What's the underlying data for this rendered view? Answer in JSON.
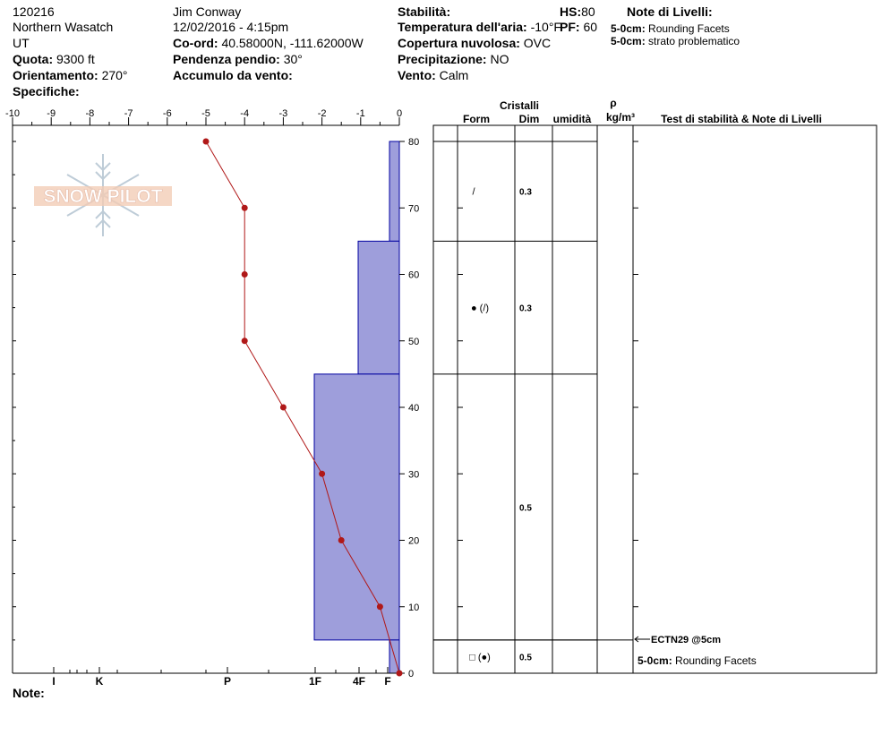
{
  "header": {
    "col1": [
      "120216",
      "Northern Wasatch",
      "UT"
    ],
    "quota_label": "Quota:",
    "quota_value": "9300 ft",
    "orient_label": "Orientamento:",
    "orient_value": "270°",
    "spec_label": "Specifiche:",
    "observer": "Jim Conway",
    "datetime": "12/02/2016 - 4:15pm",
    "coord_label": "Co-ord:",
    "coord_value": "40.58000N, -111.62000W",
    "slope_label": "Pendenza pendio:",
    "slope_value": "30°",
    "wind_load_label": "Accumulo da vento:",
    "stab_label": "Stabilità:",
    "air_temp_label": "Temperatura dell'aria:",
    "air_temp_value": "-10°F",
    "cloud_label": "Copertura nuvolosa:",
    "cloud_value": "OVC",
    "precip_label": "Precipitazione:",
    "precip_value": "NO",
    "wind_label": "Vento:",
    "wind_value": "Calm",
    "hs_label": "HS:",
    "hs_value": "80",
    "pf_label": "PF:",
    "pf_value": "60",
    "layer_notes_title": "Note di Livelli:",
    "layer_notes": [
      {
        "label": "5-0cm:",
        "text": "Rounding Facets"
      },
      {
        "label": "5-0cm:",
        "text": "strato problematico"
      }
    ]
  },
  "logo_text": "SNOW PILOT",
  "columns": {
    "crystals": "Cristalli",
    "form": "Form",
    "dim": "Dim",
    "moisture": "umidità",
    "rho": "ρ",
    "density_unit": "kg/m³",
    "stability": "Test di stabilità & Note di Livelli"
  },
  "note_label": "Note:",
  "stability_test": "ECTN29 @5cm",
  "stability_note": {
    "label": "5-0cm:",
    "text": "Rounding Facets"
  },
  "chart_data": {
    "type": "line",
    "x_top_ticks": [
      -10,
      -9,
      -8,
      -7,
      -6,
      -5,
      -4,
      -3,
      -2,
      -1,
      0
    ],
    "xlim": [
      -10,
      0
    ],
    "ylim": [
      0,
      80
    ],
    "y_ticks": [
      0,
      10,
      20,
      30,
      40,
      50,
      60,
      70,
      80
    ],
    "hardness_labels": [
      {
        "label": "I",
        "pos": 1
      },
      {
        "label": "K",
        "pos": 2
      },
      {
        "label": "P",
        "pos": 4.5
      },
      {
        "label": "1F",
        "pos": 7.7
      },
      {
        "label": "4F",
        "pos": 8.8
      },
      {
        "label": "F",
        "pos": 9.6
      }
    ],
    "temperature_series": {
      "depth": [
        80,
        70,
        60,
        50,
        40,
        30,
        20,
        10,
        0
      ],
      "temp": [
        -5,
        -4,
        -4,
        -4,
        -3,
        -2,
        -1.5,
        -0.5,
        0
      ]
    },
    "hardness_layers": [
      {
        "top": 80,
        "bottom": 65,
        "hardness": "F"
      },
      {
        "top": 65,
        "bottom": 45,
        "hardness": "4F"
      },
      {
        "top": 45,
        "bottom": 5,
        "hardness": "1F"
      },
      {
        "top": 5,
        "bottom": 0,
        "hardness": "F"
      }
    ],
    "layers": [
      {
        "top": 80,
        "bottom": 65,
        "form": "/",
        "size": "0.3"
      },
      {
        "top": 65,
        "bottom": 45,
        "form": "● (/)",
        "size": "0.3"
      },
      {
        "top": 45,
        "bottom": 5,
        "form": "",
        "size": "0.5"
      },
      {
        "top": 5,
        "bottom": 0,
        "form": "□ (●)",
        "size": "0.5"
      }
    ],
    "colors": {
      "hardness_fill": "#9e9edb",
      "hardness_stroke": "#0000a0",
      "temperature": "#b01818"
    }
  }
}
